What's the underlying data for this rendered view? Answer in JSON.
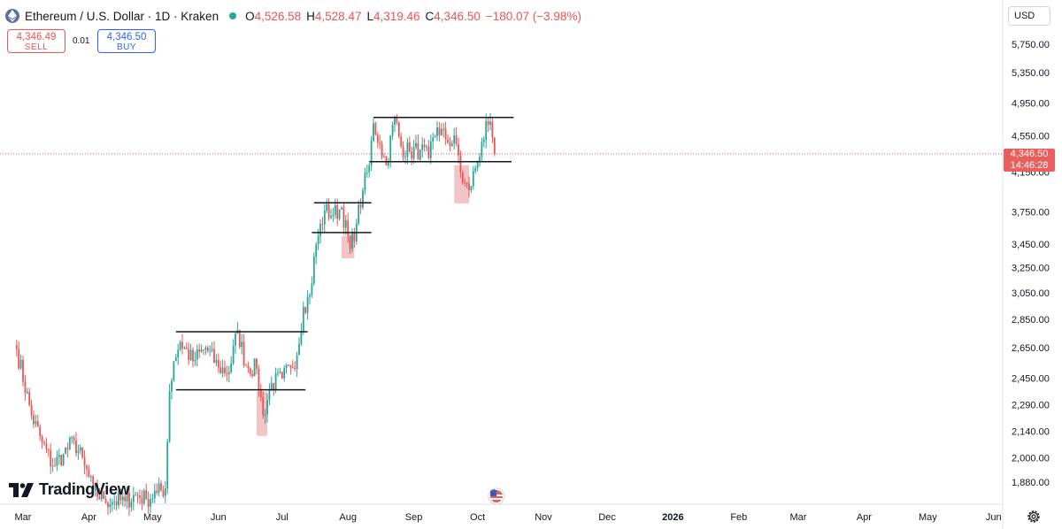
{
  "header": {
    "title": "Ethereum / U.S. Dollar · 1D · Kraken",
    "open_label": "O",
    "open": "4,526.58",
    "high_label": "H",
    "high": "4,528.47",
    "low_label": "L",
    "low": "4,319.46",
    "close_label": "C",
    "close": "4,346.50",
    "change": "−180.07 (−3.98%)"
  },
  "trade": {
    "sell_price": "4,346.49",
    "sell_label": "SELL",
    "spread": "0.01",
    "buy_price": "4,346.50",
    "buy_label": "BUY"
  },
  "currency": "USD",
  "brand": "TradingView",
  "price_tag": {
    "price": "4,346.50",
    "countdown": "14:46:28"
  },
  "colors": {
    "up": "#26a69a",
    "down": "#ef5350",
    "zone": "#f2b8bb",
    "line": "#131722"
  },
  "icons": {
    "asset": "ethereum-icon",
    "settings": "gear-icon",
    "events": "us-flag-icon"
  },
  "chart_data": {
    "type": "candlestick",
    "scale": "log",
    "ylim": [
      1770,
      6150
    ],
    "y_ticks": [
      "5,750.00",
      "5,350.00",
      "4,950.00",
      "4,550.00",
      "4,150.00",
      "3,750.00",
      "3,450.00",
      "3,250.00",
      "3,050.00",
      "2,850.00",
      "2,650.00",
      "2,450.00",
      "2,290.00",
      "2,140.00",
      "2,000.00",
      "1,880.00"
    ],
    "x_ticks": [
      "Mar",
      "Apr",
      "May",
      "Jun",
      "Jul",
      "Aug",
      "Sep",
      "Oct",
      "Nov",
      "Dec",
      "2026",
      "Feb",
      "Mar",
      "Apr",
      "May",
      "Jun"
    ],
    "current_price": 4346.5,
    "range_lines": [
      {
        "from": "2025-05-12",
        "to": "2025-07-13",
        "price": 2760
      },
      {
        "from": "2025-05-12",
        "to": "2025-07-12",
        "price": 2380
      },
      {
        "from": "2025-07-16",
        "to": "2025-08-12",
        "price": 3835
      },
      {
        "from": "2025-07-15",
        "to": "2025-08-12",
        "price": 3555
      },
      {
        "from": "2025-08-13",
        "to": "2025-10-18",
        "price": 4770
      },
      {
        "from": "2025-08-11",
        "to": "2025-10-17",
        "price": 4260
      }
    ],
    "zones": [
      {
        "from": "2025-06-19",
        "to": "2025-06-24",
        "high": 2370,
        "low": 2115
      },
      {
        "from": "2025-07-29",
        "to": "2025-08-04",
        "high": 3525,
        "low": 3330
      },
      {
        "from": "2025-09-20",
        "to": "2025-09-27",
        "high": 4220,
        "low": 3830
      }
    ],
    "trend": [
      [
        "2025-02-26",
        2640
      ],
      [
        "2025-03-05",
        2230
      ],
      [
        "2025-03-10",
        2080
      ],
      [
        "2025-03-15",
        1960
      ],
      [
        "2025-03-20",
        2020
      ],
      [
        "2025-03-25",
        2090
      ],
      [
        "2025-03-30",
        1960
      ],
      [
        "2025-04-03",
        1840
      ],
      [
        "2025-04-08",
        1800
      ],
      [
        "2025-04-13",
        1790
      ],
      [
        "2025-04-18",
        1790
      ],
      [
        "2025-04-23",
        1820
      ],
      [
        "2025-04-28",
        1800
      ],
      [
        "2025-05-03",
        1830
      ],
      [
        "2025-05-07",
        1850
      ],
      [
        "2025-05-09",
        2370
      ],
      [
        "2025-05-11",
        2560
      ],
      [
        "2025-05-14",
        2690
      ],
      [
        "2025-05-20",
        2560
      ],
      [
        "2025-05-26",
        2650
      ],
      [
        "2025-06-01",
        2520
      ],
      [
        "2025-06-06",
        2490
      ],
      [
        "2025-06-10",
        2770
      ],
      [
        "2025-06-14",
        2530
      ],
      [
        "2025-06-19",
        2510
      ],
      [
        "2025-06-22",
        2230
      ],
      [
        "2025-06-26",
        2420
      ],
      [
        "2025-07-01",
        2450
      ],
      [
        "2025-07-05",
        2520
      ],
      [
        "2025-07-08",
        2600
      ],
      [
        "2025-07-11",
        2940
      ],
      [
        "2025-07-14",
        3030
      ],
      [
        "2025-07-17",
        3450
      ],
      [
        "2025-07-21",
        3760
      ],
      [
        "2025-07-25",
        3720
      ],
      [
        "2025-07-29",
        3790
      ],
      [
        "2025-08-02",
        3410
      ],
      [
        "2025-08-05",
        3640
      ],
      [
        "2025-08-08",
        3960
      ],
      [
        "2025-08-11",
        4220
      ],
      [
        "2025-08-13",
        4700
      ],
      [
        "2025-08-16",
        4460
      ],
      [
        "2025-08-19",
        4220
      ],
      [
        "2025-08-23",
        4780
      ],
      [
        "2025-08-26",
        4430
      ],
      [
        "2025-08-30",
        4370
      ],
      [
        "2025-09-04",
        4390
      ],
      [
        "2025-09-08",
        4300
      ],
      [
        "2025-09-12",
        4650
      ],
      [
        "2025-09-16",
        4510
      ],
      [
        "2025-09-21",
        4460
      ],
      [
        "2025-09-24",
        4040
      ],
      [
        "2025-09-27",
        3960
      ],
      [
        "2025-09-30",
        4190
      ],
      [
        "2025-10-03",
        4480
      ],
      [
        "2025-10-06",
        4680
      ],
      [
        "2025-10-08",
        4530
      ],
      [
        "2025-10-09",
        4346.5
      ]
    ]
  }
}
